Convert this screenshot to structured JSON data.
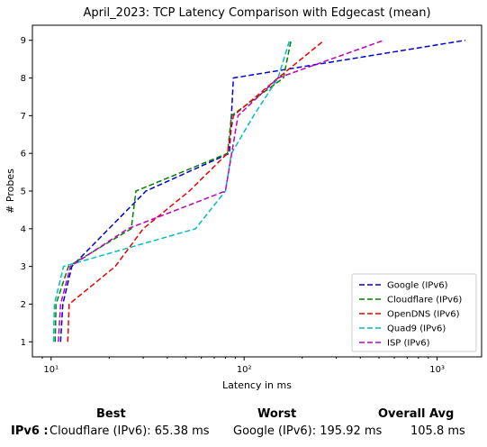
{
  "chart_data": {
    "type": "line",
    "title": "April_2023: TCP Latency Comparison with Edgecast (mean)",
    "xlabel": "Latency in ms",
    "ylabel": "# Probes",
    "xscale": "log",
    "xlim": [
      8,
      1700
    ],
    "ylim": [
      0.6,
      9.4
    ],
    "x_tick_labels": [
      "10¹",
      "10²",
      "10³"
    ],
    "x_tick_values": [
      10,
      100,
      1000
    ],
    "y_tick_values": [
      1,
      2,
      3,
      4,
      5,
      6,
      7,
      8,
      9
    ],
    "y_tick_labels": [
      "1",
      "2",
      "3",
      "4",
      "5",
      "6",
      "7",
      "8",
      "9"
    ],
    "grid": false,
    "legend_position": "lower-right",
    "line_style": "dashed",
    "series": [
      {
        "name": "Google (IPv6)",
        "color": "#0000cc",
        "x": [
          11.2,
          11.5,
          12.8,
          31.0,
          84.0,
          86.0,
          88.0,
          1400.0
        ],
        "y": [
          1,
          2,
          3,
          5,
          6,
          7,
          8,
          9
        ]
      },
      {
        "name": "Cloudflare (IPv6)",
        "color": "#008000",
        "x": [
          10.5,
          10.6,
          12.3,
          26.0,
          27.5,
          82.0,
          86.0,
          160.0,
          175.0
        ],
        "y": [
          1,
          2,
          3,
          4,
          5,
          6,
          7,
          8,
          9
        ]
      },
      {
        "name": "OpenDNS (IPv6)",
        "color": "#ee0000",
        "x": [
          12.2,
          12.4,
          21.5,
          30.0,
          52.0,
          82.0,
          88.0,
          150.0,
          260.0
        ],
        "y": [
          1,
          2,
          3,
          4,
          5,
          6,
          7,
          8,
          9
        ]
      },
      {
        "name": "Quad9 (IPv6)",
        "color": "#00bfbf",
        "x": [
          10.3,
          10.4,
          11.6,
          56.0,
          80.0,
          86.0,
          112.0,
          150.0,
          172.0
        ],
        "y": [
          1,
          2,
          3,
          4,
          5,
          6,
          7,
          8,
          9
        ]
      },
      {
        "name": "ISP (IPv6)",
        "color": "#bf00bf",
        "x": [
          10.9,
          11.2,
          12.6,
          25.0,
          80.0,
          93.0,
          150.0,
          530.0
        ],
        "y": [
          1,
          2,
          3,
          4,
          5,
          7,
          8,
          9
        ]
      }
    ]
  },
  "summary": {
    "best_label": "Best",
    "worst_label": "Worst",
    "avg_label": "Overall Avg",
    "row_label": "IPv6 :",
    "best_value": "Cloudflare (IPv6): 65.38 ms",
    "worst_value": "Google (IPv6): 195.92 ms",
    "avg_value": "105.8 ms"
  }
}
